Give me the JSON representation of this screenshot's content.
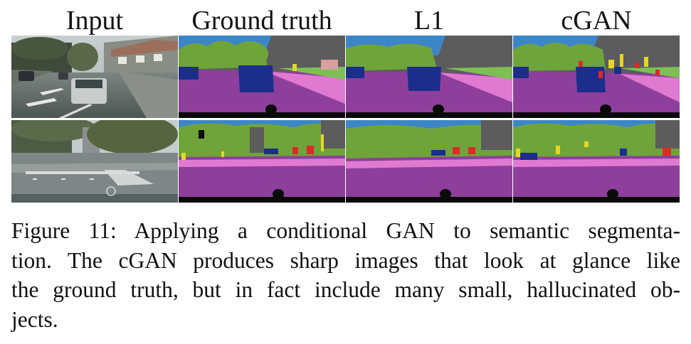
{
  "columns": [
    {
      "id": "input",
      "label": "Input"
    },
    {
      "id": "gt",
      "label": "Ground truth"
    },
    {
      "id": "l1",
      "label": "L1"
    },
    {
      "id": "cgan",
      "label": "cGAN"
    }
  ],
  "caption": {
    "lines": [
      "Figure 11: Applying a conditional GAN to semantic segmenta-",
      "tion. The cGAN produces sharp images that look at glance like",
      "the ground truth, but in fact include many small, hallucinated ob-",
      "jects."
    ]
  },
  "palette": {
    "road": "#8e3f9c",
    "sidewalk": "#e07ad0",
    "vegetation": "#6fa43a",
    "sky": "#3c86c8",
    "building": "#5c5c5c",
    "car": "#1c2e8c",
    "sign": "#e5d626",
    "person": "#e02828",
    "pole": "#9a9a9a",
    "egovehicle": "#0a0a0a"
  }
}
